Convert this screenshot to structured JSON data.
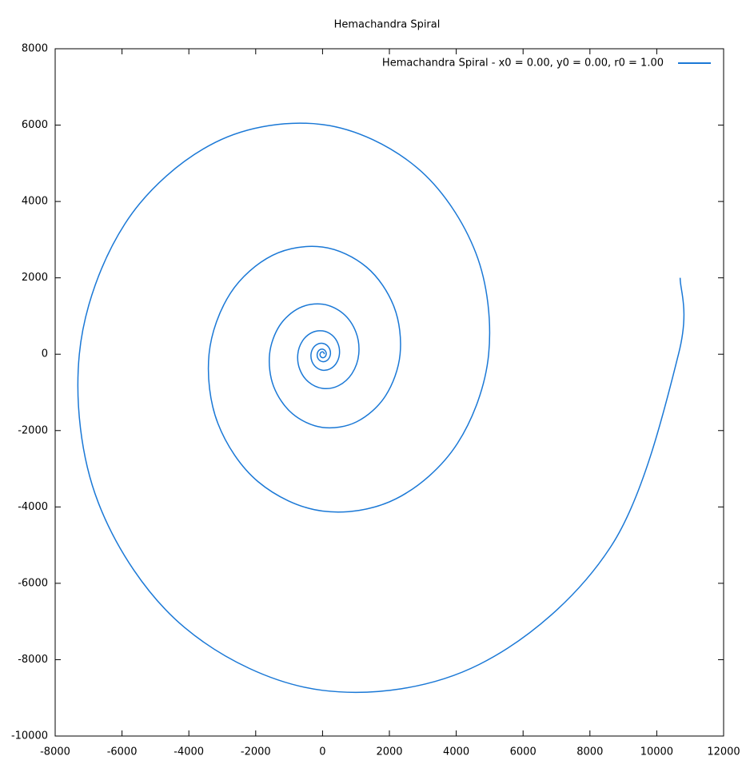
{
  "chart_data": {
    "type": "line",
    "title": "Hemachandra Spiral",
    "x": [
      51,
      47,
      29,
      0,
      -33,
      -61,
      -75,
      -69,
      -43,
      0,
      48,
      89,
      110,
      101,
      62,
      0,
      -71,
      -131,
      -161,
      -149,
      -92,
      0,
      104,
      191,
      236,
      217,
      134,
      0,
      -152,
      -281,
      -345,
      -319,
      -196,
      0,
      223,
      411,
      505,
      466,
      287,
      0,
      -326,
      -601,
      -740,
      -682,
      -420,
      0,
      477,
      880,
      1083,
      999,
      615,
      0,
      -698,
      -1289,
      -1585,
      -1463,
      -900,
      0,
      1022,
      1885,
      2320,
      2141,
      1317,
      0,
      -1495,
      -2760,
      -3396,
      -3133,
      -1928,
      0,
      2189,
      4039,
      4970,
      4587,
      2822,
      0,
      -3204,
      -5914,
      -7277,
      -6714,
      -4131,
      0,
      4690,
      8656,
      10650,
      10700
    ],
    "series": [
      {
        "name": "Hemachandra Spiral - x0 = 0.00, y0 = 0.00, r0 = 1.00",
        "color": "#1a78d6",
        "values": [
          0,
          27,
          50,
          62,
          57,
          35,
          0,
          -40,
          -74,
          -91,
          -84,
          -52,
          0,
          59,
          108,
          133,
          123,
          76,
          0,
          -86,
          -158,
          -195,
          -180,
          -111,
          0,
          126,
          232,
          285,
          263,
          162,
          0,
          -184,
          -339,
          -418,
          -385,
          -237,
          0,
          269,
          497,
          611,
          564,
          347,
          0,
          -394,
          -727,
          -895,
          -825,
          -508,
          0,
          577,
          1065,
          1310,
          1209,
          744,
          0,
          -845,
          -1559,
          -1918,
          -1769,
          -1089,
          0,
          1236,
          2281,
          2807,
          2590,
          1593,
          0,
          -1809,
          -3339,
          -4108,
          -3791,
          -2332,
          0,
          2649,
          4888,
          6015,
          5550,
          3414,
          0,
          -3877,
          -7155,
          -8803,
          -8124,
          -4998,
          0,
          2000
        ]
      }
    ],
    "xlim": [
      -8000,
      12000
    ],
    "xticks": [
      -8000,
      -6000,
      -4000,
      -2000,
      0,
      2000,
      4000,
      6000,
      8000,
      10000,
      12000
    ],
    "ylim": [
      -10000,
      8000
    ],
    "yticks": [
      -10000,
      -8000,
      -6000,
      -4000,
      -2000,
      0,
      2000,
      4000,
      6000,
      8000
    ],
    "legend": "top-right"
  }
}
